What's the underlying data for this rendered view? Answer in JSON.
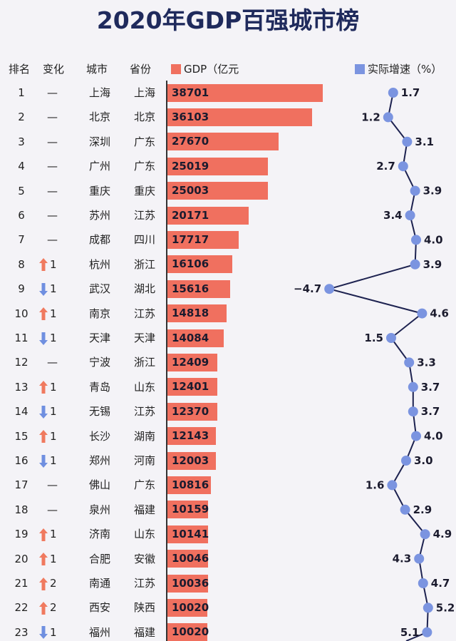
{
  "title": "2020年GDP百强城市榜",
  "headers": {
    "rank": "排名",
    "change": "变化",
    "city": "城市",
    "province": "省份",
    "gdp": "GDP（亿元",
    "growth": "实际增速（%）"
  },
  "colors": {
    "bar": "#f0705f",
    "growth_point": "#7b94e0",
    "up_arrow": "#f07a5f",
    "down_arrow": "#6f8fe0",
    "title": "#1f2a5c"
  },
  "chart_data": {
    "type": "table",
    "series": [
      {
        "name": "GDP（亿元",
        "type": "bar"
      },
      {
        "name": "实际增速（%）",
        "type": "line"
      }
    ],
    "rows": [
      {
        "rank": "1",
        "change": "—",
        "dir": "none",
        "city": "上海",
        "province": "上海",
        "gdp": "38701",
        "gdp_value": 38701,
        "growth": "1.7",
        "growth_value": 1.7
      },
      {
        "rank": "2",
        "change": "—",
        "dir": "none",
        "city": "北京",
        "province": "北京",
        "gdp": "36103",
        "gdp_value": 36103,
        "growth": "1.2",
        "growth_value": 1.2
      },
      {
        "rank": "3",
        "change": "—",
        "dir": "none",
        "city": "深圳",
        "province": "广东",
        "gdp": "27670",
        "gdp_value": 27670,
        "growth": "3.1",
        "growth_value": 3.1
      },
      {
        "rank": "4",
        "change": "—",
        "dir": "none",
        "city": "广州",
        "province": "广东",
        "gdp": "25019",
        "gdp_value": 25019,
        "growth": "2.7",
        "growth_value": 2.7
      },
      {
        "rank": "5",
        "change": "—",
        "dir": "none",
        "city": "重庆",
        "province": "重庆",
        "gdp": "25003",
        "gdp_value": 25003,
        "growth": "3.9",
        "growth_value": 3.9
      },
      {
        "rank": "6",
        "change": "—",
        "dir": "none",
        "city": "苏州",
        "province": "江苏",
        "gdp": "20171",
        "gdp_value": 20171,
        "growth": "3.4",
        "growth_value": 3.4
      },
      {
        "rank": "7",
        "change": "—",
        "dir": "none",
        "city": "成都",
        "province": "四川",
        "gdp": "17717",
        "gdp_value": 17717,
        "growth": "4.0",
        "growth_value": 4.0
      },
      {
        "rank": "8",
        "change": "1",
        "dir": "up",
        "city": "杭州",
        "province": "浙江",
        "gdp": "16106",
        "gdp_value": 16106,
        "growth": "3.9",
        "growth_value": 3.9
      },
      {
        "rank": "9",
        "change": "1",
        "dir": "down",
        "city": "武汉",
        "province": "湖北",
        "gdp": "15616",
        "gdp_value": 15616,
        "growth": "−4.7",
        "growth_value": -4.7
      },
      {
        "rank": "10",
        "change": "1",
        "dir": "up",
        "city": "南京",
        "province": "江苏",
        "gdp": "14818",
        "gdp_value": 14818,
        "growth": "4.6",
        "growth_value": 4.6
      },
      {
        "rank": "11",
        "change": "1",
        "dir": "down",
        "city": "天津",
        "province": "天津",
        "gdp": "14084",
        "gdp_value": 14084,
        "growth": "1.5",
        "growth_value": 1.5
      },
      {
        "rank": "12",
        "change": "—",
        "dir": "none",
        "city": "宁波",
        "province": "浙江",
        "gdp": "12409",
        "gdp_value": 12409,
        "growth": "3.3",
        "growth_value": 3.3
      },
      {
        "rank": "13",
        "change": "1",
        "dir": "up",
        "city": "青岛",
        "province": "山东",
        "gdp": "12401",
        "gdp_value": 12401,
        "growth": "3.7",
        "growth_value": 3.7
      },
      {
        "rank": "14",
        "change": "1",
        "dir": "down",
        "city": "无锡",
        "province": "江苏",
        "gdp": "12370",
        "gdp_value": 12370,
        "growth": "3.7",
        "growth_value": 3.7
      },
      {
        "rank": "15",
        "change": "1",
        "dir": "up",
        "city": "长沙",
        "province": "湖南",
        "gdp": "12143",
        "gdp_value": 12143,
        "growth": "4.0",
        "growth_value": 4.0
      },
      {
        "rank": "16",
        "change": "1",
        "dir": "down",
        "city": "郑州",
        "province": "河南",
        "gdp": "12003",
        "gdp_value": 12003,
        "growth": "3.0",
        "growth_value": 3.0
      },
      {
        "rank": "17",
        "change": "—",
        "dir": "none",
        "city": "佛山",
        "province": "广东",
        "gdp": "10816",
        "gdp_value": 10816,
        "growth": "1.6",
        "growth_value": 1.6
      },
      {
        "rank": "18",
        "change": "—",
        "dir": "none",
        "city": "泉州",
        "province": "福建",
        "gdp": "10159",
        "gdp_value": 10159,
        "growth": "2.9",
        "growth_value": 2.9
      },
      {
        "rank": "19",
        "change": "1",
        "dir": "up",
        "city": "济南",
        "province": "山东",
        "gdp": "10141",
        "gdp_value": 10141,
        "growth": "4.9",
        "growth_value": 4.9
      },
      {
        "rank": "20",
        "change": "1",
        "dir": "up",
        "city": "合肥",
        "province": "安徽",
        "gdp": "10046",
        "gdp_value": 10046,
        "growth": "4.3",
        "growth_value": 4.3
      },
      {
        "rank": "21",
        "change": "2",
        "dir": "up",
        "city": "南通",
        "province": "江苏",
        "gdp": "10036",
        "gdp_value": 10036,
        "growth": "4.7",
        "growth_value": 4.7
      },
      {
        "rank": "22",
        "change": "2",
        "dir": "up",
        "city": "西安",
        "province": "陕西",
        "gdp": "10020",
        "gdp_value": 10020,
        "growth": "5.2",
        "growth_value": 5.2
      },
      {
        "rank": "23",
        "change": "1",
        "dir": "down",
        "city": "福州",
        "province": "福建",
        "gdp": "10020",
        "gdp_value": 10020,
        "growth": "5.1",
        "growth_value": 5.1
      }
    ]
  }
}
